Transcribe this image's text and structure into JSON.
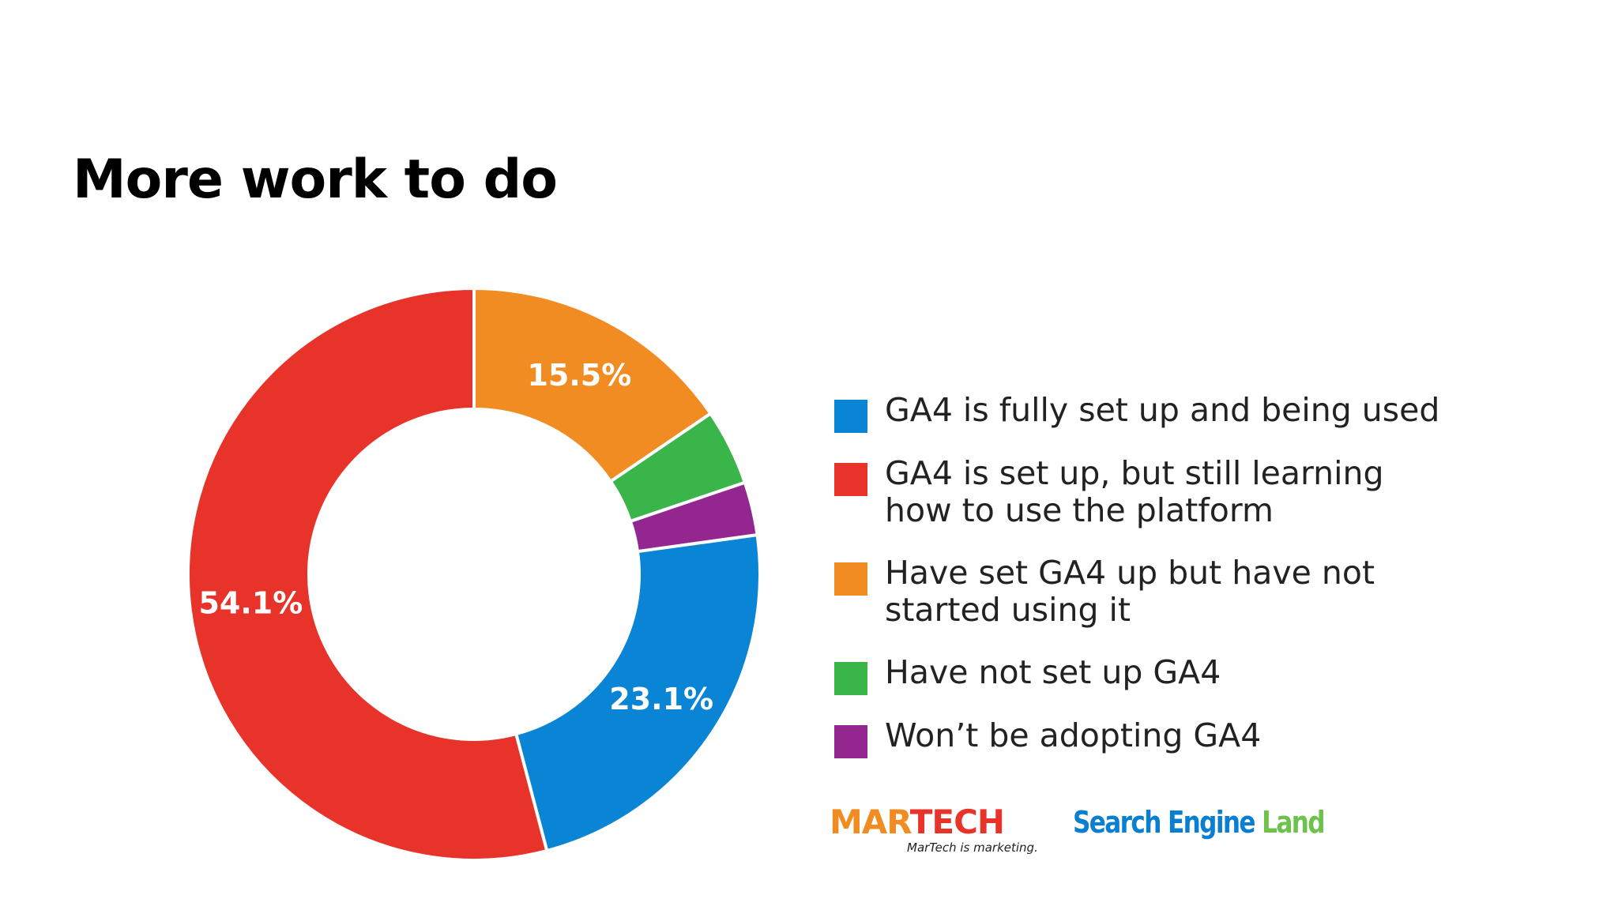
{
  "slide": {
    "title": "More work to do"
  },
  "chart_data": {
    "type": "pie",
    "variant": "donut",
    "categories": [
      "GA4 is fully set up and being used",
      "GA4 is set up, but still learning how to use the platform",
      "Have set GA4 up but have not started using it",
      "Have not set up GA4",
      "Won’t be adopting GA4"
    ],
    "values": [
      23.1,
      54.1,
      15.5,
      4.3,
      3.0
    ],
    "data_labels": [
      "23.1%",
      "54.1%",
      "15.5%",
      "",
      ""
    ],
    "colors": [
      "#0a84d4",
      "#e8332a",
      "#f18c22",
      "#39b54a",
      "#93278f"
    ],
    "slice_order": [
      2,
      3,
      4,
      0,
      1
    ],
    "legend_position": "right"
  },
  "legend": {
    "items": [
      {
        "label": "GA4 is fully set up and being used"
      },
      {
        "label": "GA4 is set up, but still learning how to use the platform"
      },
      {
        "label": "Have set GA4 up but have not started using it"
      },
      {
        "label": "Have not set up GA4"
      },
      {
        "label": "Won’t be adopting GA4"
      }
    ]
  },
  "logos": {
    "martech_part1": "MAR",
    "martech_part2": "TECH",
    "martech_tagline": "MarTech is marketing.",
    "sel_part1": "Search Engine",
    "sel_part2": "Land"
  }
}
